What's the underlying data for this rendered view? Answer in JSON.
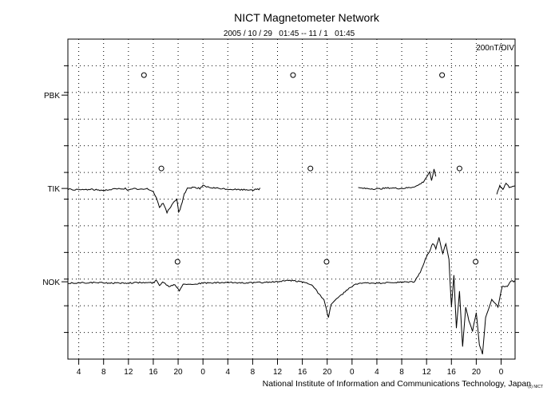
{
  "chart_data": {
    "type": "line",
    "title": "NICT Magnetometer Network",
    "subtitle": "2005 / 10 / 29   01:45 -- 11 / 1   01:45",
    "scale_label": "200nT/DIV",
    "footer": "National Institute of Information and Communications Technology, Japan",
    "footer_small": "(c) NICT",
    "grid": true,
    "x_unit": "hours elapsed (UT)",
    "x_range": [
      -1.75,
      70.25
    ],
    "y_unit": "divisions (1 div = 200 nT)",
    "y_range": [
      0,
      12
    ],
    "x_ticks": [
      {
        "x": 0,
        "label": "4"
      },
      {
        "x": 4,
        "label": "8"
      },
      {
        "x": 8,
        "label": "12"
      },
      {
        "x": 12,
        "label": "16"
      },
      {
        "x": 16,
        "label": "20"
      },
      {
        "x": 20,
        "label": "0"
      },
      {
        "x": 24,
        "label": "4"
      },
      {
        "x": 28,
        "label": "8"
      },
      {
        "x": 32,
        "label": "12"
      },
      {
        "x": 36,
        "label": "16"
      },
      {
        "x": 40,
        "label": "20"
      },
      {
        "x": 44,
        "label": "0"
      },
      {
        "x": 48,
        "label": "4"
      },
      {
        "x": 52,
        "label": "8"
      },
      {
        "x": 56,
        "label": "12"
      },
      {
        "x": 60,
        "label": "16"
      },
      {
        "x": 64,
        "label": "20"
      },
      {
        "x": 68,
        "label": "0"
      }
    ],
    "stations": [
      {
        "name": "PBK",
        "baseline": 9.9,
        "midnight_markers": [
          10.5,
          34.5,
          58.5
        ],
        "segments": []
      },
      {
        "name": "TIK",
        "baseline": 6.4,
        "midnight_markers": [
          13.3,
          37.3,
          61.3
        ],
        "segments": [
          [
            [
              -1.75,
              6.42
            ],
            [
              0,
              6.4
            ],
            [
              2,
              6.41
            ],
            [
              4,
              6.38
            ],
            [
              6,
              6.43
            ],
            [
              7.5,
              6.45
            ],
            [
              8,
              6.38
            ],
            [
              9,
              6.44
            ],
            [
              10,
              6.41
            ],
            [
              11,
              6.43
            ],
            [
              12,
              6.35
            ],
            [
              12.5,
              6.1
            ],
            [
              13,
              5.75
            ],
            [
              13.6,
              5.9
            ],
            [
              14.2,
              5.55
            ],
            [
              14.8,
              5.75
            ],
            [
              15.3,
              5.95
            ],
            [
              15.8,
              6.05
            ],
            [
              16.1,
              5.55
            ],
            [
              16.5,
              5.8
            ],
            [
              17,
              6.25
            ],
            [
              17.5,
              6.45
            ],
            [
              18.5,
              6.5
            ],
            [
              19.5,
              6.45
            ],
            [
              20,
              6.55
            ],
            [
              21,
              6.48
            ],
            [
              22.5,
              6.45
            ],
            [
              24,
              6.42
            ],
            [
              26,
              6.4
            ],
            [
              28,
              6.4
            ],
            [
              29.2,
              6.42
            ]
          ],
          [
            [
              45,
              6.42
            ],
            [
              46,
              6.4
            ],
            [
              48,
              6.38
            ],
            [
              50,
              6.42
            ],
            [
              52,
              6.4
            ],
            [
              53.5,
              6.44
            ],
            [
              54.5,
              6.5
            ],
            [
              55.5,
              6.65
            ],
            [
              56.2,
              6.9
            ],
            [
              56.5,
              7.0
            ],
            [
              56.8,
              6.7
            ],
            [
              57.2,
              7.1
            ],
            [
              57.5,
              6.85
            ]
          ],
          [
            [
              67.3,
              6.2
            ],
            [
              67.8,
              6.5
            ],
            [
              68.3,
              6.35
            ],
            [
              68.8,
              6.6
            ],
            [
              69.3,
              6.45
            ],
            [
              70.25,
              6.5
            ]
          ]
        ]
      },
      {
        "name": "NOK",
        "baseline": 2.9,
        "midnight_markers": [
          15.9,
          39.9,
          63.9
        ],
        "segments": [
          [
            [
              -1.75,
              2.9
            ],
            [
              2,
              2.92
            ],
            [
              6,
              2.9
            ],
            [
              10,
              2.92
            ],
            [
              12,
              2.91
            ],
            [
              12.5,
              3.0
            ],
            [
              13,
              2.82
            ],
            [
              13.5,
              2.95
            ],
            [
              14.5,
              2.78
            ],
            [
              15.5,
              2.85
            ],
            [
              16.2,
              2.62
            ],
            [
              16.8,
              2.88
            ],
            [
              18,
              2.85
            ],
            [
              20,
              2.9
            ],
            [
              24,
              2.92
            ],
            [
              28,
              2.91
            ],
            [
              32,
              2.95
            ],
            [
              34,
              3.0
            ],
            [
              36,
              2.95
            ],
            [
              37.5,
              2.85
            ],
            [
              38.5,
              2.55
            ],
            [
              39.5,
              2.25
            ],
            [
              40.2,
              1.6
            ],
            [
              40.6,
              2.1
            ],
            [
              41.3,
              2.25
            ],
            [
              42.5,
              2.5
            ],
            [
              43.5,
              2.7
            ],
            [
              45,
              2.9
            ],
            [
              48,
              2.9
            ],
            [
              51,
              2.92
            ],
            [
              54,
              2.95
            ],
            [
              55,
              3.3
            ],
            [
              55.8,
              3.8
            ],
            [
              56.5,
              4.1
            ],
            [
              57,
              4.4
            ],
            [
              57.5,
              4.2
            ],
            [
              58,
              4.6
            ],
            [
              58.6,
              4.0
            ],
            [
              59.1,
              4.4
            ],
            [
              59.6,
              3.8
            ],
            [
              60,
              2.0
            ],
            [
              60.4,
              3.2
            ],
            [
              60.8,
              1.2
            ],
            [
              61.3,
              2.6
            ],
            [
              61.8,
              0.5
            ],
            [
              62.3,
              2.0
            ],
            [
              62.8,
              1.5
            ],
            [
              63.4,
              1.1
            ],
            [
              64,
              1.8
            ],
            [
              64.5,
              0.6
            ],
            [
              65,
              0.25
            ],
            [
              65.5,
              1.6
            ],
            [
              66.5,
              2.3
            ],
            [
              67.5,
              2.0
            ],
            [
              68.2,
              2.8
            ],
            [
              69,
              2.75
            ],
            [
              69.6,
              3.0
            ],
            [
              70.25,
              2.95
            ]
          ]
        ]
      }
    ]
  }
}
